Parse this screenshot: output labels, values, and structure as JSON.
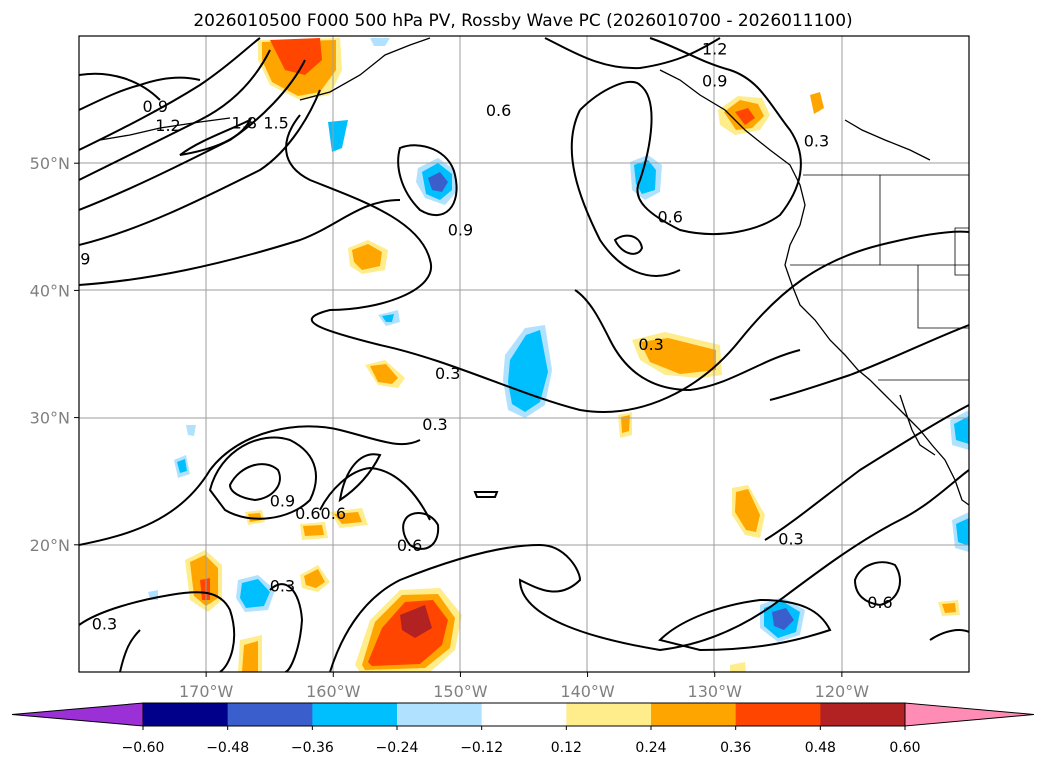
{
  "title": "2026010500 F000 500 hPa PV, Rossby Wave PC (2026010700 - 2026011100)",
  "map": {
    "lon_range": [
      -180,
      -110
    ],
    "lat_range": [
      10,
      60
    ],
    "lon_ticks": [
      {
        "lon": -170,
        "label": "170°W"
      },
      {
        "lon": -160,
        "label": "160°W"
      },
      {
        "lon": -150,
        "label": "150°W"
      },
      {
        "lon": -140,
        "label": "140°W"
      },
      {
        "lon": -130,
        "label": "130°W"
      },
      {
        "lon": -120,
        "label": "120°W"
      }
    ],
    "lat_ticks": [
      {
        "lat": 50,
        "label": "50°N"
      },
      {
        "lat": 40,
        "label": "40°N"
      },
      {
        "lat": 30,
        "label": "30°N"
      },
      {
        "lat": 20,
        "label": "20°N"
      }
    ],
    "contour_labels": [
      {
        "text": "1.2",
        "lon": -130,
        "lat": 59
      },
      {
        "text": "0.9",
        "lon": -130,
        "lat": 56.5
      },
      {
        "text": "0.9",
        "lon": -174,
        "lat": 54.5
      },
      {
        "text": "1.2",
        "lon": -173,
        "lat": 53
      },
      {
        "text": "1.8",
        "lon": -167,
        "lat": 53.2
      },
      {
        "text": "1.5",
        "lon": -164.5,
        "lat": 53.2
      },
      {
        "text": "0.6",
        "lon": -147,
        "lat": 54.2
      },
      {
        "text": "0.3",
        "lon": -122,
        "lat": 51.8
      },
      {
        "text": "0.6",
        "lon": -133.5,
        "lat": 45.8
      },
      {
        "text": "0.9",
        "lon": -150,
        "lat": 44.8
      },
      {
        "text": "9",
        "lon": -179.5,
        "lat": 42.5
      },
      {
        "text": "0.3",
        "lon": -135,
        "lat": 35.8
      },
      {
        "text": "0.3",
        "lon": -151,
        "lat": 33.5
      },
      {
        "text": "0.3",
        "lon": -152,
        "lat": 29.5
      },
      {
        "text": "0.9",
        "lon": -164,
        "lat": 23.5
      },
      {
        "text": "0.6",
        "lon": -162,
        "lat": 22.5
      },
      {
        "text": "0.6",
        "lon": -160,
        "lat": 22.5
      },
      {
        "text": "0.6",
        "lon": -154,
        "lat": 20
      },
      {
        "text": "0.3",
        "lon": -124,
        "lat": 20.5
      },
      {
        "text": "0.3",
        "lon": -164,
        "lat": 16.8
      },
      {
        "text": "0.6",
        "lon": -117,
        "lat": 15.5
      },
      {
        "text": "0.3",
        "lon": -178,
        "lat": 13.8
      }
    ]
  },
  "colorbar": {
    "boundaries": [
      -0.72,
      -0.6,
      -0.48,
      -0.36,
      -0.24,
      -0.12,
      0.12,
      0.24,
      0.36,
      0.48,
      0.6,
      0.72
    ],
    "colors": [
      "#9b30d6",
      "#00008b",
      "#3a5fcd",
      "#00bfff",
      "#b0e2ff",
      "#ffffff",
      "#ffec8b",
      "#ffa500",
      "#ff4500",
      "#b22222",
      "#ff8cb4"
    ],
    "tick_labels": [
      "−0.60",
      "−0.48",
      "−0.36",
      "−0.24",
      "−0.12",
      "0.12",
      "0.24",
      "0.36",
      "0.48",
      "0.60"
    ],
    "extend": "both"
  }
}
